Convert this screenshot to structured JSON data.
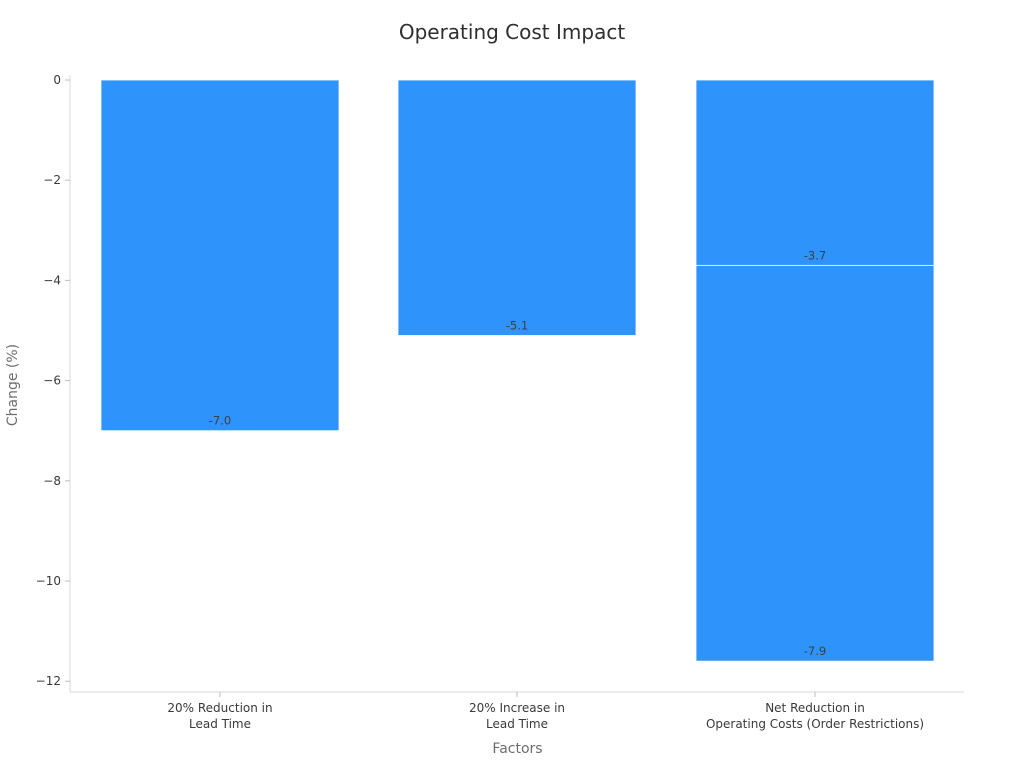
{
  "chart_data": {
    "type": "bar",
    "title": "Operating Cost Impact",
    "xlabel": "Factors",
    "ylabel": "Change (%)",
    "ylim": [
      -12.2,
      0
    ],
    "yticks": [
      0,
      -2,
      -4,
      -6,
      -8,
      -10,
      -12
    ],
    "ytick_labels": [
      "0",
      "−2",
      "−4",
      "−6",
      "−8",
      "−10",
      "−12"
    ],
    "categories": [
      [
        "20% Reduction in",
        "Lead Time"
      ],
      [
        "20% Increase in",
        "Lead Time"
      ],
      [
        "Net Reduction in",
        "Operating Costs (Order Restrictions)"
      ]
    ],
    "bars": [
      {
        "segments": [
          {
            "start": 0,
            "end": -7.0,
            "label": "-7.0"
          }
        ]
      },
      {
        "segments": [
          {
            "start": 0,
            "end": -5.1,
            "label": "-5.1"
          }
        ]
      },
      {
        "segments": [
          {
            "start": 0,
            "end": -3.7,
            "label": "-3.7"
          },
          {
            "start": -3.7,
            "end": -11.6,
            "label": "-7.9"
          }
        ]
      }
    ],
    "grid": false,
    "bar_color": "#2e93fa",
    "axis_color": "#d9d9d9"
  }
}
